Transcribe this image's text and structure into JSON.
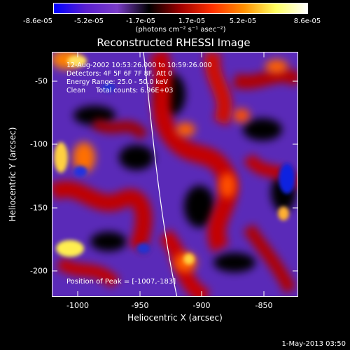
{
  "colorbar": {
    "colors": [
      "#0000ff",
      "#5a1fd0",
      "#7a3cc8",
      "#000000",
      "#a00000",
      "#ff3000",
      "#ff9000",
      "#ffff60",
      "#ffffff"
    ],
    "ticks": [
      "-8.6e-05",
      "-5.2e-05",
      "-1.7e-05",
      "1.7e-05",
      "5.2e-05",
      "8.6e-05"
    ],
    "unit": "(photons cm⁻² s⁻¹ asec⁻²)"
  },
  "title": "Reconstructed RHESSI Image",
  "info": {
    "time_range": "12-Aug-2002 10:53:26.000 to 10:59:26.000",
    "detectors": "Detectors: 4F 5F 6F 7F 8F, Att 0",
    "energy": "Energy Range: 25.0 - 50.0 keV",
    "method": "Clean     Total counts: 6.96E+03"
  },
  "peak_text": "Position of Peak = [-1007,-183]",
  "axes": {
    "xlabel": "Heliocentric X (arcsec)",
    "ylabel": "Heliocentric Y (arcsec)",
    "xticks": [
      "-1000",
      "-950",
      "-900",
      "-850"
    ],
    "yticks": [
      "-50",
      "-100",
      "-150",
      "-200"
    ]
  },
  "date_stamp": "1-May-2013 03:50"
}
